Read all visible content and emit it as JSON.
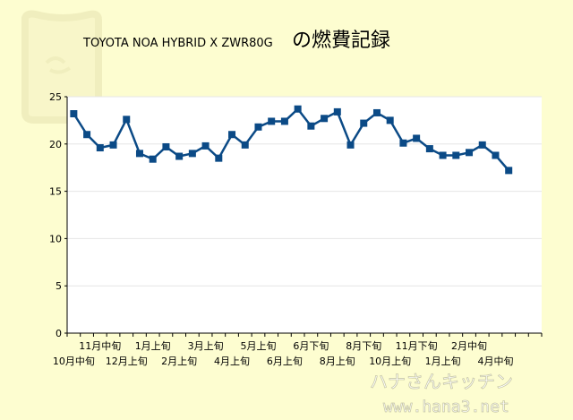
{
  "title": {
    "prefix": "TOYOTA NOA HYBRID X ZWR80G",
    "suffix": "の燃費記録"
  },
  "watermark": {
    "line1": "ハナさんキッチン",
    "line2": "www.hana3.net"
  },
  "colors": {
    "background": "#fdfdd0",
    "plot": "#ffffff",
    "series": "#0b4a86",
    "grid": "#e6e6e6"
  },
  "chart_data": {
    "type": "line",
    "ylim": [
      0,
      25
    ],
    "yticks": [
      0,
      5,
      10,
      15,
      20,
      25
    ],
    "x_label_rows": {
      "upper": [
        {
          "i": 2,
          "label": "11月中旬"
        },
        {
          "i": 6,
          "label": "1月上旬"
        },
        {
          "i": 10,
          "label": "3月上旬"
        },
        {
          "i": 14,
          "label": "5月上旬"
        },
        {
          "i": 18,
          "label": "6月下旬"
        },
        {
          "i": 22,
          "label": "8月下旬"
        },
        {
          "i": 26,
          "label": "11月下旬"
        },
        {
          "i": 30,
          "label": "2月中旬"
        }
      ],
      "lower": [
        {
          "i": 0,
          "label": "10月中旬"
        },
        {
          "i": 4,
          "label": "12月上旬"
        },
        {
          "i": 8,
          "label": "2月上旬"
        },
        {
          "i": 12,
          "label": "4月上旬"
        },
        {
          "i": 16,
          "label": "6月上旬"
        },
        {
          "i": 20,
          "label": "8月上旬"
        },
        {
          "i": 24,
          "label": "10月上旬"
        },
        {
          "i": 28,
          "label": "1月上旬"
        },
        {
          "i": 32,
          "label": "4月中旬"
        }
      ]
    },
    "category_count": 36,
    "series": [
      {
        "values": [
          23.2,
          21.0,
          19.6,
          19.9,
          22.6,
          19.0,
          18.4,
          19.7,
          18.7,
          19.0,
          19.8,
          18.5,
          21.0,
          19.9,
          21.8,
          22.4,
          22.4,
          23.7,
          21.9,
          22.7,
          23.4,
          19.9,
          22.2,
          23.3,
          22.5,
          20.1,
          20.6,
          19.5,
          18.8,
          18.8,
          19.1,
          19.9,
          18.8,
          17.2
        ]
      }
    ]
  }
}
